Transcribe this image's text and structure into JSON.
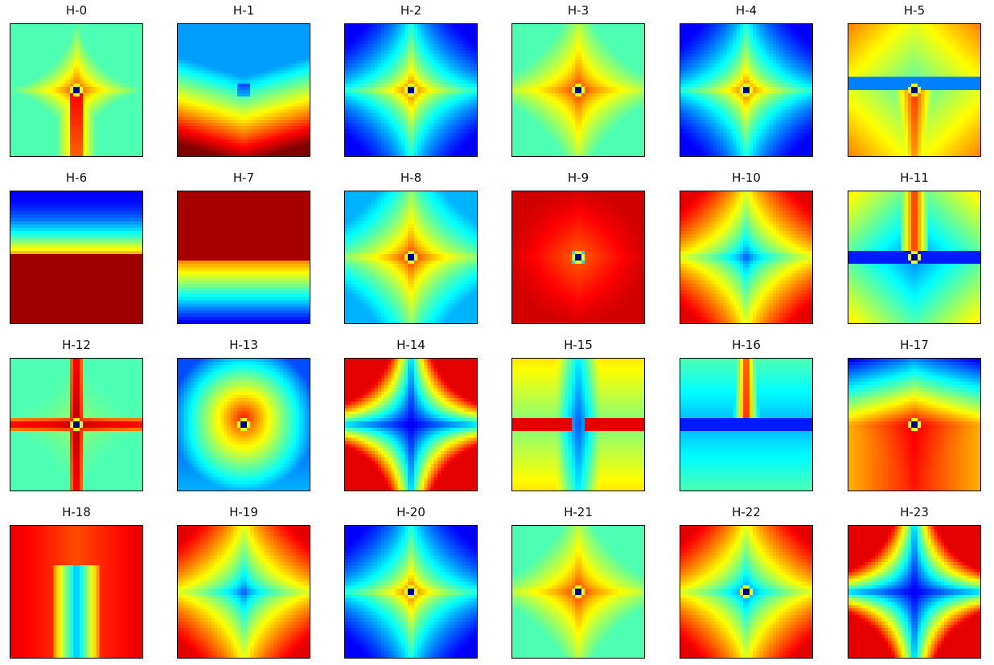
{
  "chart_data": {
    "type": "heatmap",
    "layout": {
      "rows": 4,
      "cols": 6
    },
    "colormap": "jet",
    "axes_ticks": "none",
    "panels": [
      {
        "title": "H-0",
        "pattern": "center-peak-down-tail",
        "dot": true
      },
      {
        "title": "H-1",
        "pattern": "bottom-high",
        "dot": false
      },
      {
        "title": "H-2",
        "pattern": "star-red-blue-corners",
        "dot": true
      },
      {
        "title": "H-3",
        "pattern": "red-blob-dot",
        "dot": true
      },
      {
        "title": "H-4",
        "pattern": "star-red-blue-corners",
        "dot": true
      },
      {
        "title": "H-5",
        "pattern": "blue-band-red-down",
        "dot": true
      },
      {
        "title": "H-6",
        "pattern": "blue-top-red-bottom",
        "dot": false
      },
      {
        "title": "H-7",
        "pattern": "red-top-blue-bottom",
        "dot": false
      },
      {
        "title": "H-8",
        "pattern": "star-red-cyan-corners",
        "dot": true
      },
      {
        "title": "H-9",
        "pattern": "red-field-cyan-center",
        "dot": true
      },
      {
        "title": "H-10",
        "pattern": "blue-diamond-red-corners",
        "dot": false
      },
      {
        "title": "H-11",
        "pattern": "red-up-blue-band",
        "dot": true
      },
      {
        "title": "H-12",
        "pattern": "red-cross",
        "dot": true
      },
      {
        "title": "H-13",
        "pattern": "red-upper-blue-corners",
        "dot": true
      },
      {
        "title": "H-14",
        "pattern": "blue-cross-red-corners",
        "dot": false
      },
      {
        "title": "H-15",
        "pattern": "red-horizontal-blue-vertical",
        "dot": false
      },
      {
        "title": "H-16",
        "pattern": "red-top-tail-blue-band",
        "dot": false
      },
      {
        "title": "H-17",
        "pattern": "red-center-blue-top",
        "dot": true
      },
      {
        "title": "H-18",
        "pattern": "blue-down-red-field",
        "dot": false
      },
      {
        "title": "H-19",
        "pattern": "blue-diamond-red-corners",
        "dot": false
      },
      {
        "title": "H-20",
        "pattern": "star-red-blue-corners",
        "dot": true
      },
      {
        "title": "H-21",
        "pattern": "red-blob-dot",
        "dot": true
      },
      {
        "title": "H-22",
        "pattern": "blue-diamond-red-corners",
        "dot": true
      },
      {
        "title": "H-23",
        "pattern": "blue-cross-red-corners",
        "dot": false
      }
    ]
  }
}
